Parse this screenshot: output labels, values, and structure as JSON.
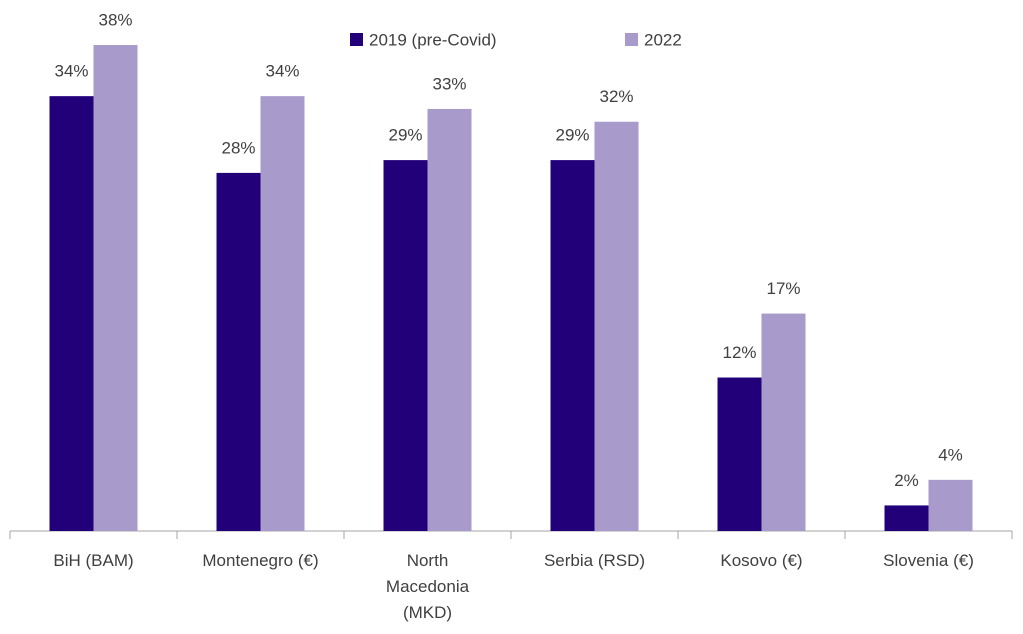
{
  "chart_data": {
    "type": "bar",
    "categories": [
      "BiH (BAM)",
      "Montenegro (€)",
      "North Macedonia (MKD)",
      "Serbia (RSD)",
      "Kosovo (€)",
      "Slovenia (€)"
    ],
    "series": [
      {
        "name": "2019 (pre-Covid)",
        "color": "#22007a",
        "values": [
          34,
          28,
          29,
          29,
          12,
          2
        ],
        "value_labels": [
          "34%",
          "28%",
          "29%",
          "29%",
          "12%",
          "2%"
        ]
      },
      {
        "name": "2022",
        "color": "#a89acb",
        "values": [
          38,
          34,
          33,
          32,
          17,
          4
        ],
        "value_labels": [
          "38%",
          "34%",
          "33%",
          "32%",
          "17%",
          "4%"
        ]
      }
    ],
    "legend": "top"
  }
}
